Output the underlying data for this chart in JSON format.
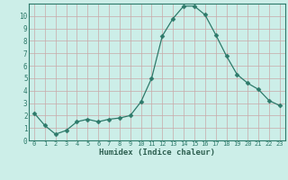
{
  "x": [
    0,
    1,
    2,
    3,
    4,
    5,
    6,
    7,
    8,
    9,
    10,
    11,
    12,
    13,
    14,
    15,
    16,
    17,
    18,
    19,
    20,
    21,
    22,
    23
  ],
  "y": [
    2.2,
    1.2,
    0.5,
    0.8,
    1.5,
    1.7,
    1.5,
    1.7,
    1.8,
    2.0,
    3.1,
    5.0,
    8.4,
    9.8,
    10.8,
    10.8,
    10.1,
    8.5,
    6.8,
    5.3,
    4.6,
    4.1,
    3.2,
    2.8
  ],
  "line_color": "#2d7a6a",
  "marker": "D",
  "marker_size": 2.5,
  "xlabel": "Humidex (Indice chaleur)",
  "xlim": [
    -0.5,
    23.5
  ],
  "ylim": [
    0,
    11
  ],
  "yticks": [
    0,
    1,
    2,
    3,
    4,
    5,
    6,
    7,
    8,
    9,
    10
  ],
  "xticks": [
    0,
    1,
    2,
    3,
    4,
    5,
    6,
    7,
    8,
    9,
    10,
    11,
    12,
    13,
    14,
    15,
    16,
    17,
    18,
    19,
    20,
    21,
    22,
    23
  ],
  "bg_color": "#cceee8",
  "grid_color": "#c9a8a8",
  "tick_color": "#2d7a6a",
  "label_color": "#2d5f50",
  "spine_color": "#2d7a6a"
}
